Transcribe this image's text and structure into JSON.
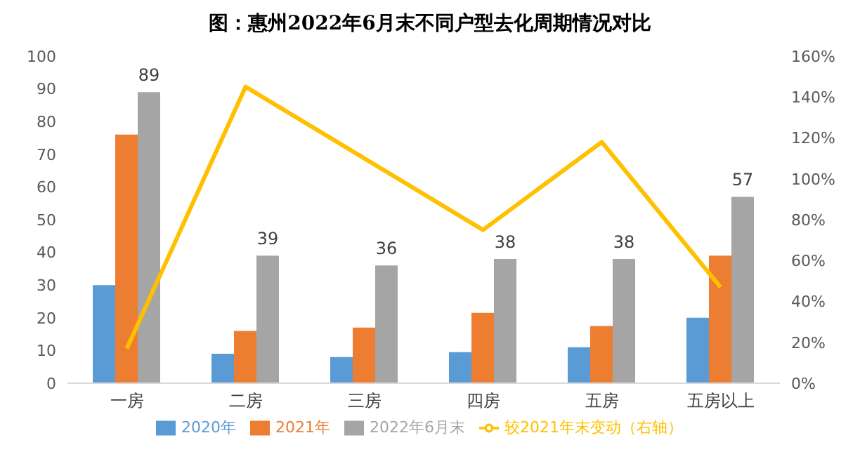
{
  "chart_data": {
    "type": "bar",
    "title": "图：惠州2022年6月末不同户型去化周期情况对比",
    "categories": [
      "一房",
      "二房",
      "三房",
      "四房",
      "五房",
      "五房以上"
    ],
    "series": [
      {
        "name": "2020年",
        "color": "#5b9bd5",
        "values": [
          30,
          9,
          8,
          9.5,
          11,
          20
        ]
      },
      {
        "name": "2021年",
        "color": "#ed7d31",
        "values": [
          76,
          16,
          17,
          21.5,
          17.5,
          39
        ]
      },
      {
        "name": "2022年6月末",
        "color": "#a5a5a5",
        "values": [
          89,
          39,
          36,
          38,
          38,
          57
        ],
        "value_labels": [
          "89",
          "39",
          "36",
          "38",
          "38",
          "57"
        ]
      },
      {
        "name": "较2021年末变动（右轴）",
        "type": "line",
        "axis": "y2",
        "color": "#ffc000",
        "values": [
          17,
          145,
          110,
          75,
          118,
          47
        ]
      }
    ],
    "ylim": [
      0,
      100
    ],
    "yticks": [
      0,
      10,
      20,
      30,
      40,
      50,
      60,
      70,
      80,
      90,
      100
    ],
    "y2lim": [
      0,
      160
    ],
    "y2ticks": [
      {
        "value": 0,
        "label": "0%"
      },
      {
        "value": 20,
        "label": "20%"
      },
      {
        "value": 40,
        "label": "40%"
      },
      {
        "value": 60,
        "label": "60%"
      },
      {
        "value": 80,
        "label": "80%"
      },
      {
        "value": 100,
        "label": "100%"
      },
      {
        "value": 120,
        "label": "120%"
      },
      {
        "value": 140,
        "label": "140%"
      },
      {
        "value": 160,
        "label": "160%"
      }
    ],
    "legend": "bottom",
    "marker": "none"
  }
}
